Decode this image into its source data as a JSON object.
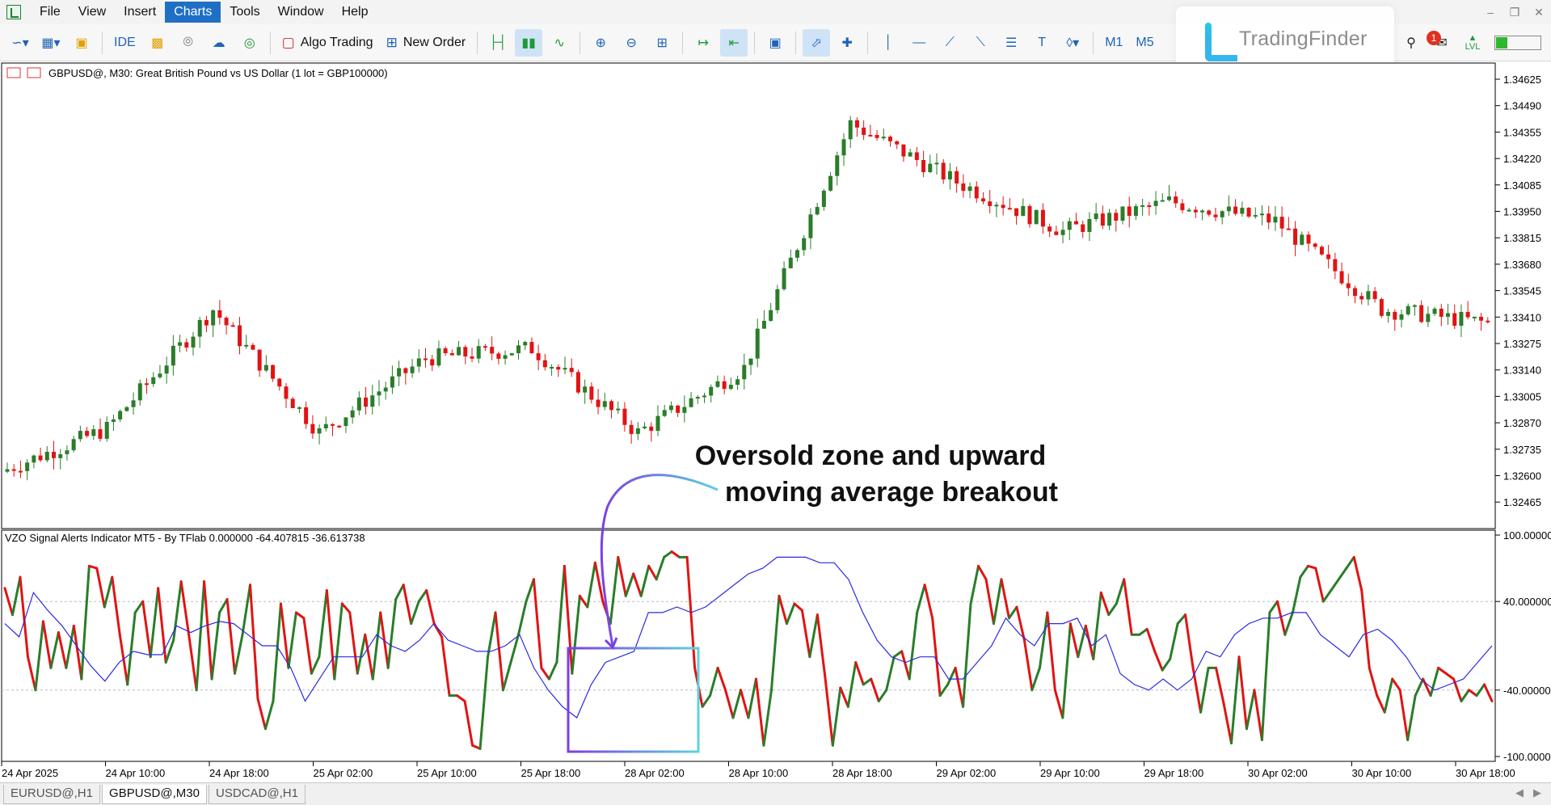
{
  "menu": {
    "items": [
      "File",
      "View",
      "Insert",
      "Charts",
      "Tools",
      "Window",
      "Help"
    ],
    "active": "Charts"
  },
  "toolbar": {
    "ide_label": "IDE",
    "algo_label": "Algo Trading",
    "order_label": "New Order",
    "tf_m1": "M1",
    "tf_m5": "M5",
    "notification_count": "1",
    "lvl_label": "LVL"
  },
  "logo": {
    "text": "TradingFinder"
  },
  "chart": {
    "title": "GBPUSD@, M30:  Great British Pound vs US Dollar (1 lot = GBP100000)",
    "price_labels": [
      "1.34625",
      "1.34490",
      "1.34355",
      "1.34220",
      "1.34085",
      "1.33950",
      "1.33815",
      "1.33680",
      "1.33545",
      "1.33410",
      "1.33275",
      "1.33140",
      "1.33005",
      "1.32870",
      "1.32735",
      "1.32600",
      "1.32465"
    ],
    "annotation": [
      "Oversold zone and upward",
      "moving average breakout"
    ]
  },
  "indicator": {
    "title": "VZO Signal Alerts Indicator MT5 - By TFlab 0.000000 -64.407815 -36.613738",
    "levels": [
      "100.000000",
      "40.000000",
      "-40.000000",
      "-100.000000"
    ]
  },
  "time_axis": [
    "24 Apr 2025",
    "24 Apr 10:00",
    "24 Apr 18:00",
    "25 Apr 02:00",
    "25 Apr 10:00",
    "25 Apr 18:00",
    "28 Apr 02:00",
    "28 Apr 10:00",
    "28 Apr 18:00",
    "29 Apr 02:00",
    "29 Apr 10:00",
    "29 Apr 18:00",
    "30 Apr 02:00",
    "30 Apr 10:00",
    "30 Apr 18:00"
  ],
  "tabs": {
    "items": [
      "EURUSD@,H1",
      "GBPUSD@,M30",
      "USDCAD@,H1"
    ],
    "active": "GBPUSD@,M30"
  },
  "colors": {
    "bull": "#2a7d2a",
    "bear": "#e01414",
    "ma": "#2a2ae0",
    "box_left": "#7b3fe4",
    "box_right": "#5ed2e0"
  },
  "chart_data": [
    {
      "type": "candlestick",
      "symbol": "GBPUSD@",
      "timeframe": "M30",
      "ylim": [
        1.324,
        1.347
      ],
      "close_path": [
        [
          "24 Apr 2025",
          1.3262
        ],
        [
          "24 Apr 10:00",
          1.3284
        ],
        [
          "24 Apr 18:00",
          1.3345
        ],
        [
          "25 Apr 02:00",
          1.3282
        ],
        [
          "25 Apr 10:00",
          1.332
        ],
        [
          "25 Apr 18:00",
          1.3325
        ],
        [
          "28 Apr 02:00",
          1.3282
        ],
        [
          "28 Apr 10:00",
          1.3315
        ],
        [
          "28 Apr 18:00",
          1.344
        ],
        [
          "29 Apr 02:00",
          1.341
        ],
        [
          "29 Apr 10:00",
          1.3385
        ],
        [
          "29 Apr 18:00",
          1.34
        ],
        [
          "30 Apr 02:00",
          1.339
        ],
        [
          "30 Apr 10:00",
          1.3345
        ],
        [
          "30 Apr 18:00",
          1.3338
        ]
      ]
    },
    {
      "type": "line",
      "name": "VZO",
      "ylim": [
        -100,
        100
      ],
      "levels": [
        100,
        40,
        -40,
        -100
      ],
      "series": [
        {
          "values": [
            52,
            28,
            62,
            -10,
            -40,
            22,
            -20,
            12,
            -20,
            18,
            -30,
            72,
            70,
            35,
            62,
            10,
            -35,
            30,
            40,
            -10,
            52,
            -15,
            5,
            58,
            10,
            -40,
            58,
            -30,
            30,
            42,
            -25,
            10,
            55,
            -48,
            -75,
            -50,
            38,
            -20,
            30,
            25,
            -25,
            -10,
            50,
            -30,
            38,
            30,
            -25,
            10,
            -30,
            30,
            -20,
            42,
            55,
            20,
            40,
            50,
            20,
            8,
            -45,
            -45,
            -50,
            -90,
            -93,
            -10,
            30,
            -40,
            -15,
            10,
            40,
            60,
            -20,
            -30,
            -15,
            72,
            -25,
            45,
            35,
            75,
            40,
            20,
            80,
            45,
            65,
            45,
            72,
            60,
            80,
            85,
            80,
            80,
            -20,
            -55,
            -45,
            -20,
            -40,
            -65,
            -40,
            -65,
            -30,
            -90,
            -40,
            45,
            20,
            38,
            32,
            -10,
            28,
            -28,
            -90,
            -38,
            -55,
            -15,
            -35,
            -30,
            -50,
            -40,
            -10,
            -5,
            -30,
            30,
            55,
            25,
            -45,
            -35,
            -20,
            -55,
            38,
            72,
            60,
            20,
            60,
            25,
            35,
            5,
            -40,
            -20,
            30,
            -40,
            -65,
            20,
            -10,
            18,
            -12,
            48,
            28,
            38,
            60,
            10,
            10,
            15,
            -5,
            -22,
            -12,
            20,
            28,
            -20,
            -60,
            -20,
            -20,
            -52,
            -88,
            -10,
            -75,
            -40,
            -85,
            30,
            40,
            10,
            30,
            62,
            72,
            70,
            40,
            50,
            60,
            70,
            80,
            50,
            -20,
            -45,
            -60,
            -30,
            -40,
            -85,
            -45,
            -30,
            -45,
            -20,
            -25,
            -30,
            -50,
            -40,
            -45,
            -35,
            -50
          ]
        },
        {
          "values": [
            20,
            8,
            48,
            32,
            18,
            0,
            -18,
            -32,
            -15,
            -5,
            -8,
            -8,
            18,
            12,
            18,
            22,
            20,
            10,
            0,
            0,
            -20,
            -50,
            -30,
            -10,
            -10,
            -10,
            10,
            0,
            -5,
            5,
            20,
            5,
            0,
            -5,
            -5,
            0,
            10,
            -20,
            -40,
            -55,
            -65,
            -35,
            -15,
            -10,
            -5,
            30,
            30,
            35,
            30,
            35,
            45,
            55,
            65,
            70,
            80,
            80,
            80,
            75,
            75,
            60,
            30,
            5,
            -10,
            -15,
            -10,
            -10,
            -30,
            -30,
            -15,
            0,
            25,
            10,
            0,
            20,
            20,
            25,
            0,
            10,
            -25,
            -35,
            -40,
            -30,
            -40,
            -30,
            -5,
            -10,
            10,
            20,
            25,
            25,
            30,
            30,
            10,
            0,
            -10,
            10,
            15,
            5,
            -10,
            -30,
            -40,
            -35,
            -30,
            -15,
            0
          ]
        }
      ]
    }
  ]
}
